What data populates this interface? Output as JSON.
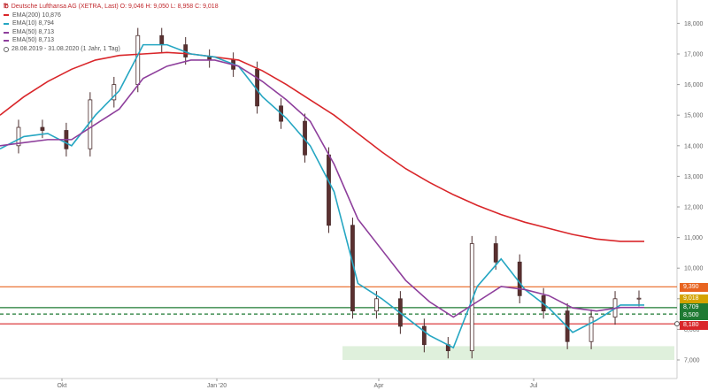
{
  "legend": {
    "header": "Deutsche Lufthansa AG (XETRA, Last)  O: 9,046  H: 9,050  L: 8,958  C: 9,018",
    "items": [
      {
        "label": "EMA(200)  10,876",
        "color": "#d9262a"
      },
      {
        "label": "EMA(10)  8,794",
        "color": "#25a6c2"
      },
      {
        "label": "EMA(50)  8,713",
        "color": "#8e3f9c"
      },
      {
        "label": "EMA(50)  8,713",
        "color": "#8e3f9c"
      }
    ],
    "period": "28.08.2019 - 31.08.2020  (1 Jahr, 1 Tag)"
  },
  "tags": {
    "resistance": {
      "label": "9,390",
      "color": "#e86420"
    },
    "price": {
      "label": "9,018",
      "color": "#d4a300"
    },
    "ema50": {
      "label": "8,709",
      "color": "#1f7a33"
    },
    "ema10": {
      "label": "8,500",
      "color": "#1f7a33"
    },
    "support": {
      "label": "8,180",
      "color": "#d9262a"
    }
  },
  "chart_data": {
    "type": "candlestick",
    "title": "Deutsche Lufthansa AG (XETRA, Last)",
    "ylim": [
      6.8,
      18.8
    ],
    "y_ticks": [
      "7,000",
      "8,000",
      "9,000",
      "10,000",
      "11,000",
      "12,000",
      "13,000",
      "14,000",
      "15,000",
      "16,000",
      "17,000",
      "18,000"
    ],
    "x_ticks": [
      "Okt",
      "Jan '20",
      "Apr",
      "Jul"
    ],
    "x": [
      "2019-08-28",
      "2019-09-11",
      "2019-09-25",
      "2019-10-09",
      "2019-10-23",
      "2019-11-06",
      "2019-11-20",
      "2019-12-04",
      "2019-12-18",
      "2020-01-01",
      "2020-01-15",
      "2020-01-29",
      "2020-02-12",
      "2020-02-26",
      "2020-03-11",
      "2020-03-25",
      "2020-04-08",
      "2020-04-22",
      "2020-05-06",
      "2020-05-20",
      "2020-06-03",
      "2020-06-17",
      "2020-07-01",
      "2020-07-15",
      "2020-07-29",
      "2020-08-12",
      "2020-08-26",
      "2020-08-31"
    ],
    "close": [
      14.0,
      14.6,
      14.5,
      13.9,
      15.5,
      16.0,
      17.6,
      17.3,
      16.9,
      16.8,
      16.5,
      15.3,
      14.8,
      13.7,
      11.4,
      8.6,
      9.0,
      8.1,
      7.5,
      7.3,
      10.8,
      10.2,
      9.1,
      8.6,
      7.6,
      8.4,
      9.0,
      9.018
    ],
    "series": [
      {
        "name": "EMA(200)",
        "color": "#d9262a",
        "values": [
          15.0,
          15.6,
          16.1,
          16.5,
          16.8,
          16.95,
          17.0,
          17.05,
          17.0,
          16.9,
          16.8,
          16.45,
          16.0,
          15.5,
          15.0,
          14.4,
          13.8,
          13.25,
          12.8,
          12.4,
          12.05,
          11.75,
          11.5,
          11.3,
          11.1,
          10.95,
          10.876,
          10.876
        ]
      },
      {
        "name": "EMA(10)",
        "color": "#25a6c2",
        "values": [
          13.9,
          14.3,
          14.4,
          14.0,
          15.0,
          15.8,
          17.3,
          17.3,
          17.0,
          16.9,
          16.6,
          15.6,
          14.9,
          14.0,
          12.5,
          9.5,
          9.0,
          8.4,
          7.8,
          7.4,
          9.4,
          10.3,
          9.3,
          8.7,
          7.9,
          8.3,
          8.794,
          8.794
        ]
      },
      {
        "name": "EMA(50)",
        "color": "#8e3f9c",
        "values": [
          14.0,
          14.1,
          14.2,
          14.2,
          14.7,
          15.2,
          16.2,
          16.6,
          16.8,
          16.8,
          16.6,
          16.1,
          15.5,
          14.8,
          13.4,
          11.6,
          10.6,
          9.6,
          8.9,
          8.4,
          8.9,
          9.4,
          9.3,
          9.1,
          8.7,
          8.6,
          8.713,
          8.713
        ]
      }
    ],
    "horizontal_lines": [
      {
        "value": 9.39,
        "color": "#e86420"
      },
      {
        "value": 8.709,
        "color": "#1f7a33"
      },
      {
        "value": 8.5,
        "color": "#1f7a33",
        "style": "dashed"
      },
      {
        "value": 8.18,
        "color": "#d9262a"
      }
    ],
    "support_zone": [
      7.0,
      7.45
    ],
    "grid": false,
    "legend": "top-left"
  }
}
